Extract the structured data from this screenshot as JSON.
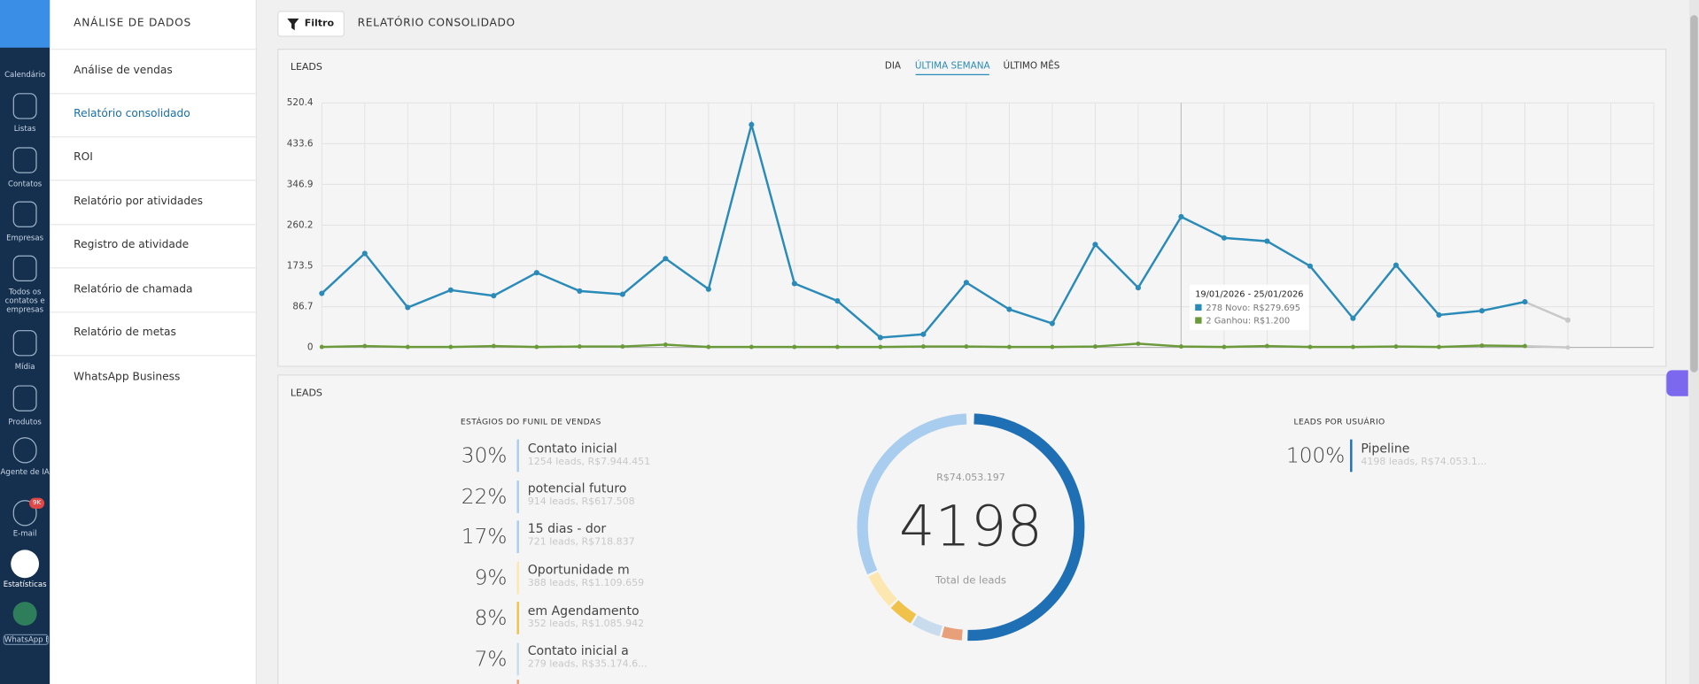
{
  "sidebar": {
    "items": [
      "Calendário",
      "Listas",
      "Contatos",
      "Empresas",
      "Todos os contatos e empresas",
      "Mídia",
      "Produtos",
      "Agente de IA",
      "E-mail",
      "Estatísticas",
      "WhatsApp B"
    ],
    "email_badge": "9K"
  },
  "nav": {
    "title": "ANÁLISE DE DADOS",
    "items": [
      "Análise de vendas",
      "Relatório consolidado",
      "ROI",
      "Relatório por atividades",
      "Registro de atividade",
      "Relatório de chamada",
      "Relatório de metas",
      "WhatsApp Business"
    ]
  },
  "header": {
    "filter": "Filtro",
    "title": "RELATÓRIO CONSOLIDADO"
  },
  "chart_data": {
    "type": "line",
    "title": "LEADS",
    "tabs": [
      "DIA",
      "ÚLTIMA SEMANA",
      "ÚLTIMO MÊS"
    ],
    "ylim": [
      0,
      520.4
    ],
    "yticks": [
      0,
      86.7,
      173.5,
      260.2,
      346.9,
      433.6,
      520.4
    ],
    "grid": true,
    "series": [
      {
        "color": "#2a8ab8",
        "values": [
          115,
          200,
          85,
          122,
          110,
          159,
          120,
          113,
          189,
          124,
          474,
          136,
          99,
          21,
          28,
          138,
          81,
          51,
          219,
          127,
          278,
          233,
          226,
          173,
          62,
          175,
          69,
          78,
          97,
          58
        ]
      },
      {
        "color": "#6a9a3a",
        "values": [
          1,
          3,
          1,
          1,
          3,
          1,
          2,
          2,
          6,
          1,
          1,
          1,
          1,
          1,
          2,
          2,
          1,
          1,
          2,
          8,
          2,
          1,
          3,
          1,
          1,
          2,
          1,
          4,
          3,
          0
        ]
      }
    ],
    "partial_color": "#c8c8c8",
    "tooltip": {
      "title": "19/01/2026 - 25/01/2026",
      "lines": [
        "278 Novo: R$279.695",
        "2 Ganhou: R$1.200"
      ]
    }
  },
  "funnel": {
    "panel_title": "LEADS",
    "title": "ESTÁGIOS DO FUNIL DE VENDAS",
    "rows": [
      {
        "percent": "30%",
        "name": "Contato inicial",
        "detail": "1254 leads, R$7.944.451"
      },
      {
        "percent": "22%",
        "name": "potencial futuro",
        "detail": "914 leads, R$617.508"
      },
      {
        "percent": "17%",
        "name": "15 dias - dor",
        "detail": "721 leads, R$718.837"
      },
      {
        "percent": "9%",
        "name": "Oportunidade m",
        "detail": "388 leads, R$1.109.659"
      },
      {
        "percent": "8%",
        "name": "em Agendamento",
        "detail": "352 leads, R$1.085.942"
      },
      {
        "percent": "7%",
        "name": "Contato inicial a",
        "detail": "279 leads, R$35.174.6..."
      }
    ],
    "total_value": "R$74.053.197",
    "total": "4198",
    "total_label": "Total de leads"
  },
  "users": {
    "title": "LEADS POR USUÁRIO",
    "rows": [
      {
        "percent": "100%",
        "name": "Pipeline",
        "detail": "4198 leads, R$74.053.1..."
      }
    ]
  }
}
